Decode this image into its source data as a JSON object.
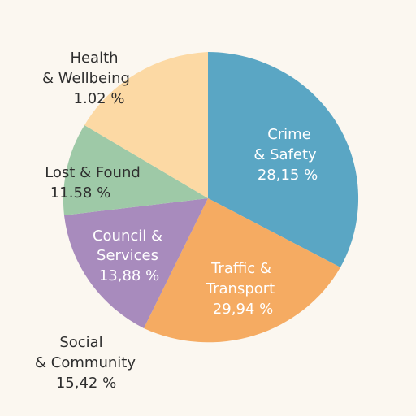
{
  "chart_data": {
    "type": "pie",
    "title": "",
    "slices": [
      {
        "label_lines": [
          "Crime",
          "& Safety"
        ],
        "value": 28.15,
        "value_text": "28,15 %",
        "color": "#5aa6c4"
      },
      {
        "label_lines": [
          "Traffic &",
          "Transport"
        ],
        "value": 29.94,
        "value_text": "29,94 %",
        "color": "#f5ab62"
      },
      {
        "label_lines": [
          "Council &",
          "Services"
        ],
        "value": 13.88,
        "value_text": "13,88 %",
        "color": "#a88bbd"
      },
      {
        "label_lines": [
          "Social",
          "& Community"
        ],
        "value": 15.42,
        "value_text": "15,42 %",
        "color": "#9ec9a7"
      },
      {
        "label_lines": [
          "Lost & Found"
        ],
        "value": 11.58,
        "value_text": "11.58 %",
        "color": "#fcd9a4"
      },
      {
        "label_lines": [
          "Health",
          "& Wellbeing"
        ],
        "value": 1.02,
        "value_text": "1.02 %",
        "color": "#fcd9a4"
      }
    ]
  }
}
